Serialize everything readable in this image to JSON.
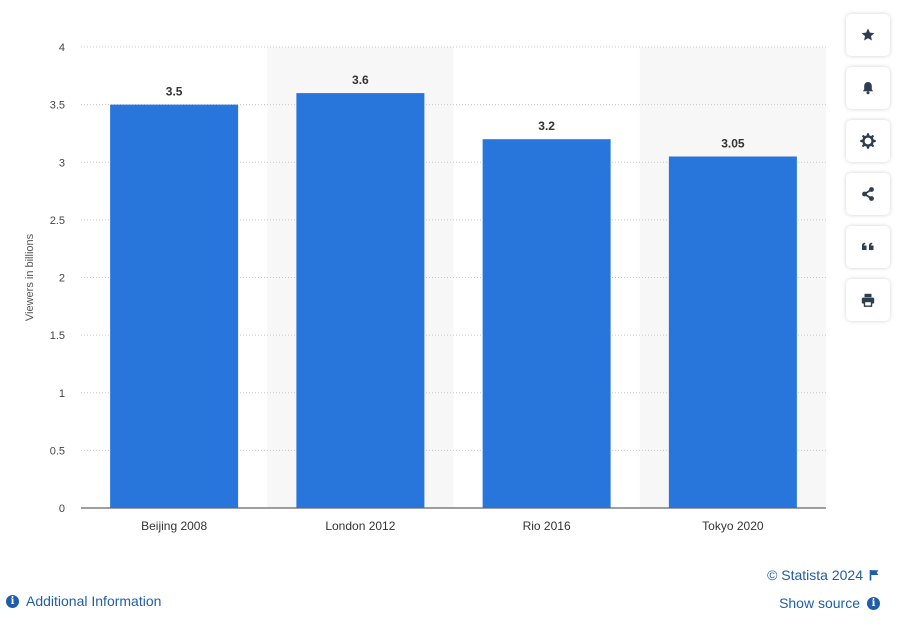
{
  "chart_data": {
    "type": "bar",
    "title": "",
    "xlabel": "",
    "ylabel": "Viewers in billions",
    "categories": [
      "Beijing 2008",
      "London 2012",
      "Rio 2016",
      "Tokyo 2020"
    ],
    "values": [
      3.5,
      3.6,
      3.2,
      3.05
    ],
    "value_labels": [
      "3.5",
      "3.6",
      "3.2",
      "3.05"
    ],
    "ylim": [
      0,
      4
    ],
    "yticks": [
      0,
      0.5,
      1,
      1.5,
      2,
      2.5,
      3,
      3.5,
      4
    ],
    "ytick_labels": [
      "0",
      "0.5",
      "1",
      "1.5",
      "2",
      "2.5",
      "3",
      "3.5",
      "4"
    ],
    "grid": true,
    "bar_color": "#2876dc",
    "alternate_band_color": "#f7f7f7"
  },
  "toolbar": {
    "buttons": [
      {
        "name": "favorite",
        "icon": "star-icon"
      },
      {
        "name": "notify",
        "icon": "bell-icon"
      },
      {
        "name": "settings",
        "icon": "gear-icon"
      },
      {
        "name": "share",
        "icon": "share-icon"
      },
      {
        "name": "cite",
        "icon": "quote-icon"
      },
      {
        "name": "print",
        "icon": "print-icon"
      }
    ]
  },
  "footer": {
    "additional_info": "Additional Information",
    "copyright": "© Statista 2024",
    "show_source": "Show source"
  },
  "colors": {
    "link": "#1f5da8",
    "icon": "#2d3e50"
  }
}
